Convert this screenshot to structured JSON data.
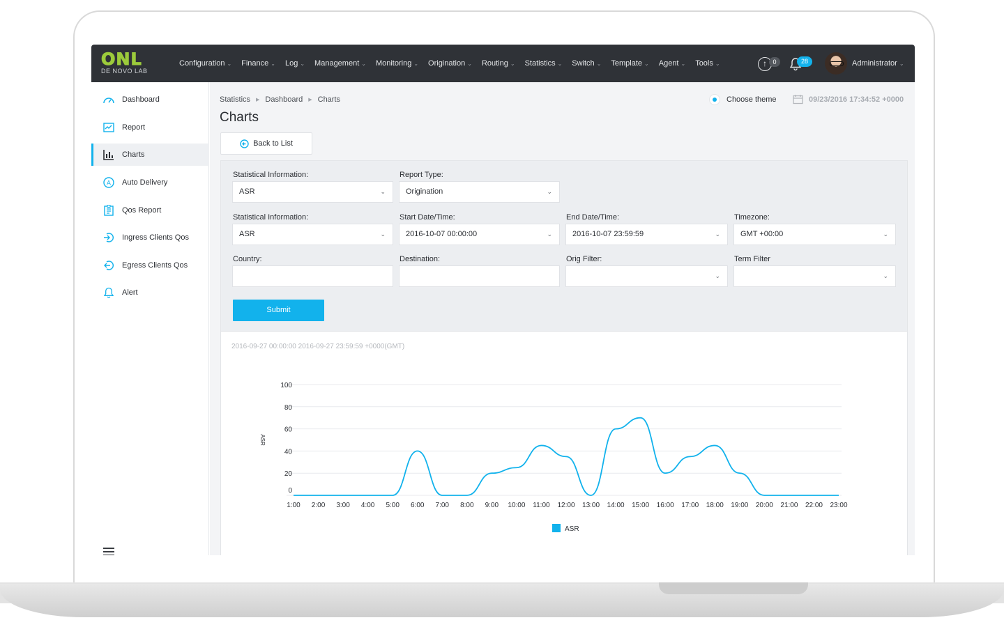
{
  "brand": {
    "logo_text": "ONL",
    "logo_sub": "DE NOVO LAB"
  },
  "nav": {
    "items": [
      "Configuration",
      "Finance",
      "Log",
      "Management",
      "Monitoring",
      "Origination",
      "Routing",
      "Statistics",
      "Switch",
      "Template",
      "Agent",
      "Tools"
    ],
    "upload_count": "0",
    "notification_count": "28",
    "user_name": "Administrator"
  },
  "sidebar": {
    "items": [
      {
        "label": "Dashboard",
        "icon": "dashboard-icon"
      },
      {
        "label": "Report",
        "icon": "report-icon"
      },
      {
        "label": "Charts",
        "icon": "charts-icon",
        "active": true
      },
      {
        "label": "Auto Delivery",
        "icon": "auto-delivery-icon"
      },
      {
        "label": "Qos Report",
        "icon": "qos-report-icon"
      },
      {
        "label": "Ingress Clients Qos",
        "icon": "ingress-icon"
      },
      {
        "label": "Egress Clients Qos",
        "icon": "egress-icon"
      },
      {
        "label": "Alert",
        "icon": "bell-icon"
      }
    ]
  },
  "header": {
    "breadcrumb": [
      "Statistics",
      "Dashboard",
      "Charts"
    ],
    "title": "Charts",
    "theme_label": "Choose theme",
    "datetime": "09/23/2016 17:34:52 +0000",
    "back_label": "Back to List"
  },
  "filters": {
    "stat_info_1": {
      "label": "Statistical Information:",
      "value": "ASR"
    },
    "report_type": {
      "label": "Report Type:",
      "value": "Origination"
    },
    "stat_info_2": {
      "label": "Statistical Information:",
      "value": "ASR"
    },
    "start": {
      "label": "Start Date/Time:",
      "value": "2016-10-07 00:00:00"
    },
    "end": {
      "label": "End Date/Time:",
      "value": "2016-10-07 23:59:59"
    },
    "timezone": {
      "label": "Timezone:",
      "value": "GMT +00:00"
    },
    "country": {
      "label": "Country:",
      "value": ""
    },
    "destination": {
      "label": "Destination:",
      "value": ""
    },
    "orig_filter": {
      "label": "Orig Filter:",
      "value": ""
    },
    "term_filter": {
      "label": "Term Filter",
      "value": ""
    },
    "submit_label": "Submit"
  },
  "chart_range": "2016-09-27 00:00:00 2016-09-27 23:59:59 +0000(GMT)",
  "colors": {
    "accent": "#12b2ec",
    "topbar": "#2f3237"
  },
  "chart_data": {
    "type": "line",
    "ylabel": "ASR",
    "xlabel": "",
    "ylim": [
      0,
      100
    ],
    "yticks": [
      0,
      20,
      40,
      60,
      80,
      100
    ],
    "categories": [
      "1:00",
      "2:00",
      "3:00",
      "4:00",
      "5:00",
      "6:00",
      "7:00",
      "8:00",
      "9:00",
      "10:00",
      "11:00",
      "12:00",
      "13:00",
      "14:00",
      "15:00",
      "16:00",
      "17:00",
      "18:00",
      "19:00",
      "20:00",
      "21:00",
      "22:00",
      "23:00"
    ],
    "series": [
      {
        "name": "ASR",
        "values": [
          0,
          0,
          0,
          0,
          0,
          40,
          0,
          0,
          20,
          25,
          45,
          35,
          0,
          60,
          70,
          20,
          35,
          45,
          20,
          0,
          0,
          0,
          0
        ]
      }
    ],
    "grid": true,
    "legend": "bottom-center"
  }
}
